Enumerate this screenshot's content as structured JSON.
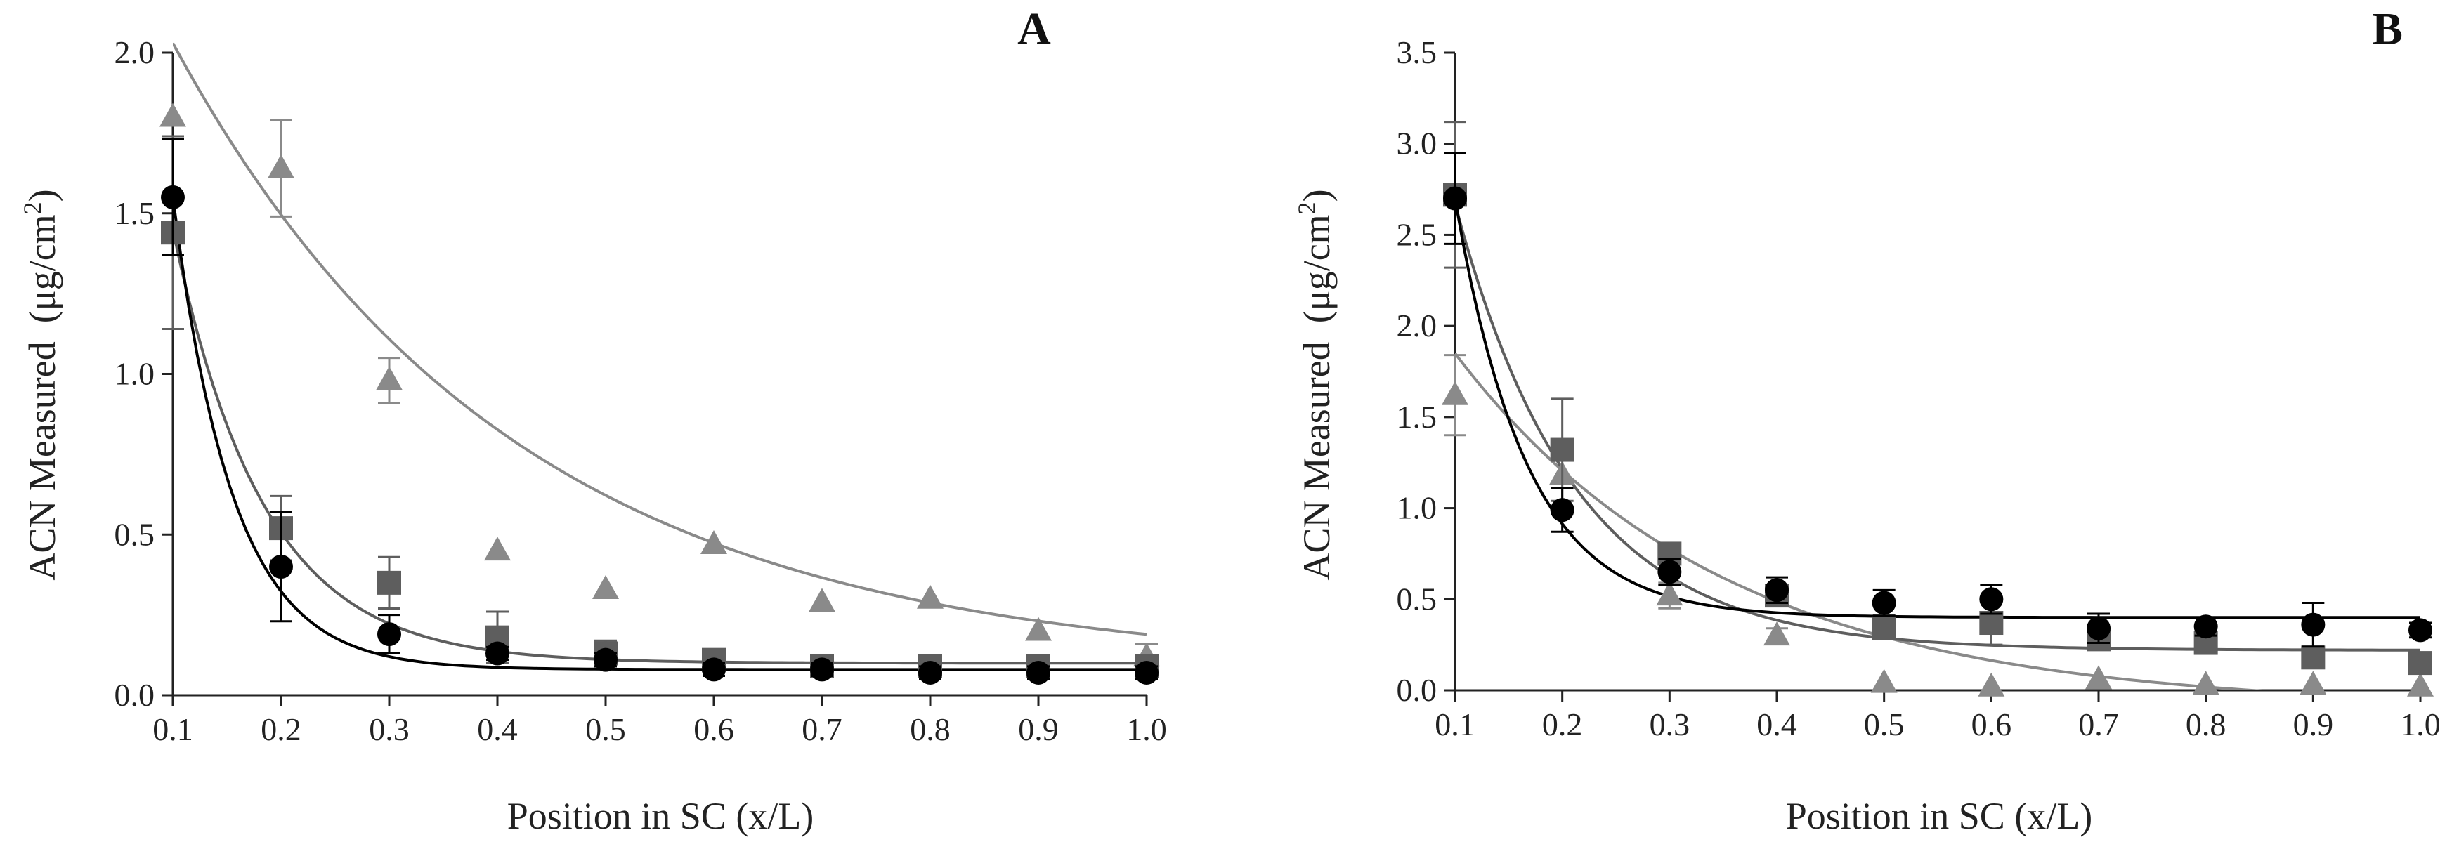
{
  "figure": {
    "background": "#ffffff"
  },
  "chart_data": [
    {
      "panel": "A",
      "type": "scatter",
      "xlabel": "Position in SC (x/L)",
      "ylabel_main": "ACN Measured",
      "ylabel_unit_open": "(μg/cm",
      "ylabel_unit_sup": "2",
      "ylabel_unit_close": ")",
      "xlim": [
        0.1,
        1.0
      ],
      "ylim": [
        0.0,
        2.0
      ],
      "x_ticks": [
        0.1,
        0.2,
        0.3,
        0.4,
        0.5,
        0.6,
        0.7,
        0.8,
        0.9,
        1.0
      ],
      "x_tick_labels": [
        "0.1",
        "0.2",
        "0.3",
        "0.4",
        "0.5",
        "0.6",
        "0.7",
        "0.8",
        "0.9",
        "1.0"
      ],
      "y_ticks": [
        0.0,
        0.5,
        1.0,
        1.5,
        2.0
      ],
      "y_tick_labels": [
        "0.0",
        "0.5",
        "1.0",
        "1.5",
        "2.0"
      ],
      "series": [
        {
          "name": "triangle series",
          "marker": "triangle",
          "color": "#8a8a8a",
          "x": [
            0.1,
            0.2,
            0.3,
            0.4,
            0.5,
            0.6,
            0.7,
            0.8,
            0.9,
            1.0
          ],
          "y": [
            1.8,
            1.64,
            0.98,
            0.45,
            0.33,
            0.47,
            0.29,
            0.3,
            0.2,
            0.12
          ],
          "err": [
            0.0,
            0.15,
            0.07,
            0.0,
            0.0,
            0.0,
            0.0,
            0.0,
            0.0,
            0.04
          ],
          "fit": {
            "a": 1.95,
            "k": 3.2,
            "c": 0.08
          }
        },
        {
          "name": "square series",
          "marker": "square",
          "color": "#5e5e5e",
          "x": [
            0.1,
            0.2,
            0.3,
            0.4,
            0.5,
            0.6,
            0.7,
            0.8,
            0.9,
            1.0
          ],
          "y": [
            1.44,
            0.52,
            0.35,
            0.18,
            0.13,
            0.11,
            0.09,
            0.09,
            0.09,
            0.09
          ],
          "err": [
            0.3,
            0.1,
            0.08,
            0.08,
            0.04,
            0.02,
            0.02,
            0.02,
            0.02,
            0.02
          ],
          "fit": {
            "a": 1.35,
            "k": 12.0,
            "c": 0.1
          }
        },
        {
          "name": "circle series",
          "marker": "circle",
          "color": "#000000",
          "x": [
            0.1,
            0.2,
            0.3,
            0.4,
            0.5,
            0.6,
            0.7,
            0.8,
            0.9,
            1.0
          ],
          "y": [
            1.55,
            0.4,
            0.19,
            0.13,
            0.11,
            0.08,
            0.08,
            0.07,
            0.07,
            0.07
          ],
          "err": [
            0.18,
            0.17,
            0.06,
            0.02,
            0.02,
            0.02,
            0.02,
            0.02,
            0.02,
            0.02
          ],
          "fit": {
            "a": 1.47,
            "k": 18.0,
            "c": 0.08
          }
        }
      ]
    },
    {
      "panel": "B",
      "type": "scatter",
      "xlabel": "Position in SC (x/L)",
      "ylabel_main": "ACN Measured",
      "ylabel_unit_open": "(μg/cm",
      "ylabel_unit_sup": "2",
      "ylabel_unit_close": ")",
      "xlim": [
        0.1,
        1.0
      ],
      "ylim": [
        0.0,
        3.5
      ],
      "x_ticks": [
        0.1,
        0.2,
        0.3,
        0.4,
        0.5,
        0.6,
        0.7,
        0.8,
        0.9,
        1.0
      ],
      "x_tick_labels": [
        "0.1",
        "0.2",
        "0.3",
        "0.4",
        "0.5",
        "0.6",
        "0.7",
        "0.8",
        "0.9",
        "1.0"
      ],
      "y_ticks": [
        0.0,
        0.5,
        1.0,
        1.5,
        2.0,
        2.5,
        3.0,
        3.5
      ],
      "y_tick_labels": [
        "0.0",
        "0.5",
        "1.0",
        "1.5",
        "2.0",
        "2.5",
        "3.0",
        "3.5"
      ],
      "series": [
        {
          "name": "triangle series",
          "marker": "triangle",
          "color": "#8a8a8a",
          "x": [
            0.1,
            0.2,
            0.3,
            0.4,
            0.5,
            0.6,
            0.7,
            0.8,
            0.9,
            1.0
          ],
          "y": [
            1.62,
            1.18,
            0.52,
            0.3,
            0.04,
            0.02,
            0.06,
            0.03,
            0.03,
            0.02
          ],
          "err": [
            0.22,
            0.0,
            0.07,
            0.04,
            0.0,
            0.0,
            0.0,
            0.0,
            0.0,
            0.0
          ],
          "fit": {
            "a": 1.95,
            "k": 4.0,
            "c": -0.1
          }
        },
        {
          "name": "square series",
          "marker": "square",
          "color": "#5e5e5e",
          "x": [
            0.1,
            0.2,
            0.3,
            0.4,
            0.5,
            0.6,
            0.7,
            0.8,
            0.9,
            1.0
          ],
          "y": [
            2.72,
            1.32,
            0.75,
            0.52,
            0.34,
            0.37,
            0.28,
            0.26,
            0.18,
            0.15
          ],
          "err": [
            0.4,
            0.28,
            0.05,
            0.05,
            0.05,
            0.12,
            0.04,
            0.03,
            0.03,
            0.03
          ],
          "fit": {
            "a": 2.45,
            "k": 9.0,
            "c": 0.22
          }
        },
        {
          "name": "circle series",
          "marker": "circle",
          "color": "#000000",
          "x": [
            0.1,
            0.2,
            0.3,
            0.4,
            0.5,
            0.6,
            0.7,
            0.8,
            0.9,
            1.0
          ],
          "y": [
            2.7,
            0.99,
            0.65,
            0.55,
            0.48,
            0.5,
            0.34,
            0.35,
            0.36,
            0.33
          ],
          "err": [
            0.25,
            0.12,
            0.07,
            0.07,
            0.07,
            0.08,
            0.08,
            0.05,
            0.12,
            0.04
          ],
          "fit": {
            "a": 2.3,
            "k": 15.0,
            "c": 0.4
          }
        }
      ]
    }
  ]
}
